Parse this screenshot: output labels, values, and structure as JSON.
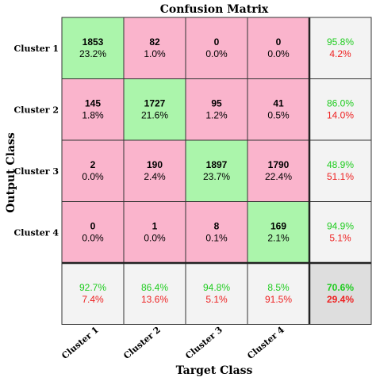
{
  "chart_data": {
    "type": "heatmap",
    "title": "Confusion Matrix",
    "xlabel": "Target Class",
    "ylabel": "Output Class",
    "x_categories": [
      "Cluster 1",
      "Cluster 2",
      "Cluster 3",
      "Cluster 4"
    ],
    "y_categories": [
      "Cluster 1",
      "Cluster 2",
      "Cluster 3",
      "Cluster 4"
    ],
    "counts": [
      [
        1853,
        82,
        0,
        0
      ],
      [
        145,
        1727,
        95,
        41
      ],
      [
        2,
        190,
        1897,
        1790
      ],
      [
        0,
        1,
        8,
        169
      ]
    ],
    "percents": [
      [
        "23.2%",
        "1.0%",
        "0.0%",
        "0.0%"
      ],
      [
        "1.8%",
        "21.6%",
        "1.2%",
        "0.5%"
      ],
      [
        "0.0%",
        "2.4%",
        "23.7%",
        "22.4%"
      ],
      [
        "0.0%",
        "0.0%",
        "0.1%",
        "2.1%"
      ]
    ],
    "row_summary": [
      {
        "correct": "95.8%",
        "incorrect": "4.2%"
      },
      {
        "correct": "86.0%",
        "incorrect": "14.0%"
      },
      {
        "correct": "48.9%",
        "incorrect": "51.1%"
      },
      {
        "correct": "94.9%",
        "incorrect": "5.1%"
      }
    ],
    "col_summary": [
      {
        "correct": "92.7%",
        "incorrect": "7.4%"
      },
      {
        "correct": "86.4%",
        "incorrect": "13.6%"
      },
      {
        "correct": "94.8%",
        "incorrect": "5.1%"
      },
      {
        "correct": "8.5%",
        "incorrect": "91.5%"
      }
    ],
    "overall": {
      "correct": "70.6%",
      "incorrect": "29.4%"
    }
  },
  "colors": {
    "diagonal": "#abf5ab",
    "off_diagonal": "#fab4cc",
    "summary": "#f3f3f3",
    "overall": "#dedede",
    "correct_text": "#1fcc1f",
    "incorrect_text": "#ee2222",
    "grid": "#333333"
  }
}
